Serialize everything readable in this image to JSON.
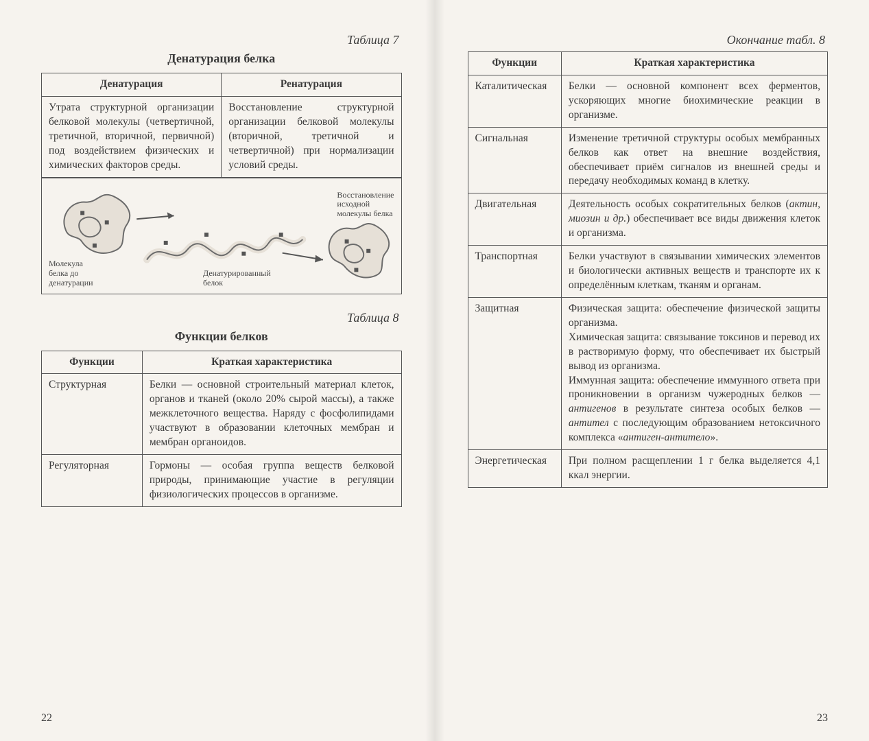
{
  "colors": {
    "page_bg": "#f6f3ee",
    "text": "#3a3a3a",
    "border": "#555555",
    "diagram_fill": "#e6e0d7",
    "diagram_stroke": "#6b6b6b"
  },
  "typography": {
    "body_fontsize_pt": 12,
    "title_fontsize_pt": 13,
    "label_fontsize_pt": 13,
    "diagram_label_fontsize_pt": 9,
    "font_family": "serif"
  },
  "left_page": {
    "table7": {
      "label": "Таблица 7",
      "title": "Денатурация белка",
      "columns": [
        "Денатурация",
        "Ренатурация"
      ],
      "col_widths_pct": [
        50,
        50
      ],
      "rows": [
        [
          "Утрата структурной организации белковой молекулы (четвертичной, третичной, вторичной, первичной) под воздействием физических и химических факторов среды.",
          "Восстановление структурной организации белковой молекулы (вторичной, третичной и четвертичной) при нормализации условий среды."
        ]
      ]
    },
    "diagram": {
      "captions": {
        "left": "Молекула\nбелка до\nденатурации",
        "center": "Денатурированный\nбелок",
        "right": "Восстановление\nисходной\nмолекулы белка"
      },
      "fill": "#e6e0d7",
      "stroke": "#6b6b6b"
    },
    "table8": {
      "label": "Таблица 8",
      "title": "Функции белков",
      "columns": [
        "Функции",
        "Краткая характеристика"
      ],
      "col_widths_pct": [
        28,
        72
      ],
      "rows": [
        {
          "func": "Структурная",
          "desc": "Белки — основной строительный материал клеток, органов и тканей (около 20% сырой массы), а также межклеточного вещества. Наряду с фосфолипидами участвуют в образовании клеточных мембран и мембран органоидов."
        },
        {
          "func": "Регуляторная",
          "desc": "Гормоны — особая группа веществ белковой природы, принимающие участие в регуляции физиологических процессов в организме."
        }
      ]
    },
    "page_number": "22"
  },
  "right_page": {
    "continuation_label": "Окончание табл. 8",
    "columns": [
      "Функции",
      "Краткая характеристика"
    ],
    "col_widths_pct": [
      26,
      74
    ],
    "rows": [
      {
        "func": "Каталитическая",
        "desc": "Белки — основной компонент всех ферментов, ускоряющих многие биохимические реакции в организме."
      },
      {
        "func": "Сигнальная",
        "desc": "Изменение третичной структуры особых мембранных белков как ответ на внешние воздействия, обеспечивает приём сигналов из внешней среды и передачу необходимых команд в клетку."
      },
      {
        "func": "Двигательная",
        "desc_html": "Деятельность особых сократительных белков (<span class=\"italic\">актин, миозин и др.</span>) обеспечивает все виды движения клеток и организма."
      },
      {
        "func": "Транспортная",
        "desc": "Белки участвуют в связывании химических элементов и биологически активных веществ и транспорте их к определённым клеткам, тканям и органам."
      },
      {
        "func": "Защитная",
        "desc_html": "Физическая защита: обеспечение физической защиты организма.<br>Химическая защита: связывание токсинов и перевод их в растворимую форму, что обеспечивает их быстрый вывод из организма.<br>Иммунная защита: обеспечение иммунного ответа при проникновении в организм чужеродных белков — <span class=\"italic\">антигенов</span> в результате синтеза особых белков — <span class=\"italic\">антител</span> с последующим образованием нетоксичного комплекса «<span class=\"italic\">антиген-антитело</span>»."
      },
      {
        "func": "Энергетическая",
        "desc": "При полном расщеплении 1 г белка выделяется 4,1 ккал энергии."
      }
    ],
    "page_number": "23"
  }
}
